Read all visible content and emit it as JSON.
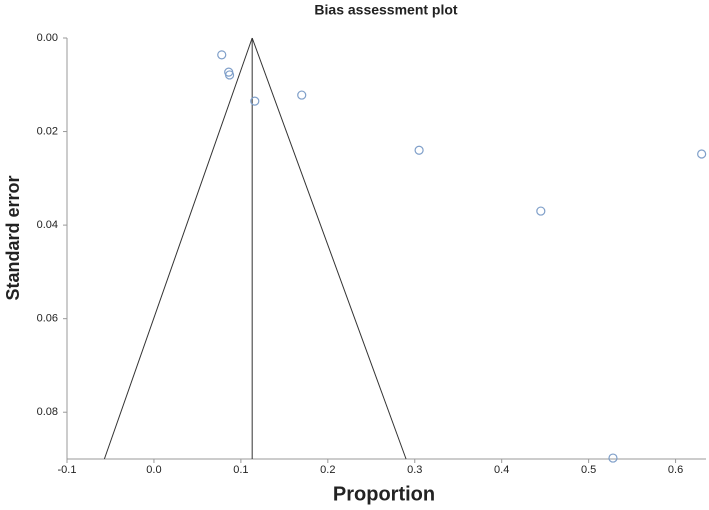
{
  "chart_data": {
    "type": "scatter",
    "title": "Bias assessment plot",
    "x_label": "Proportion",
    "y_label": "Standard error",
    "x": [
      0.078,
      0.086,
      0.087,
      0.116,
      0.17,
      0.305,
      0.445,
      0.63,
      0.528
    ],
    "values": [
      0.0036,
      0.0073,
      0.0079,
      0.0135,
      0.0122,
      0.024,
      0.037,
      0.0248,
      0.0898
    ],
    "color": "#7f9fc9",
    "pooled": 0.113,
    "funnel_limits": [
      -0.057,
      0.29
    ],
    "xlim": [
      -0.1,
      0.635
    ],
    "ylim": [
      0,
      0.09
    ],
    "y_inverted": true,
    "xticks": [
      -0.1,
      {
        "value": 0,
        "label": "0.0"
      },
      0.1,
      0.2,
      0.3,
      0.4,
      0.5,
      0.6
    ],
    "yticks": [
      {
        "value": 0,
        "label": "0.00"
      },
      0.02,
      0.04,
      0.06,
      0.08
    ]
  }
}
